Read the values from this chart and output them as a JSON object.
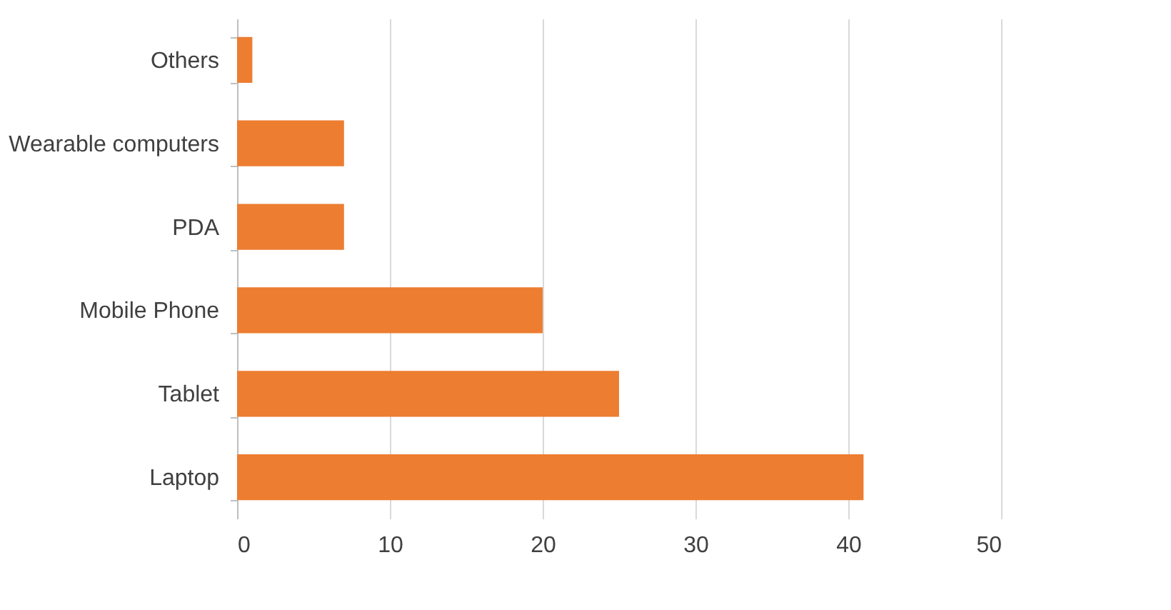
{
  "chart_data": {
    "type": "bar",
    "orientation": "horizontal",
    "categories": [
      "Others",
      "Wearable computers",
      "PDA",
      "Mobile Phone",
      "Tablet",
      "Laptop"
    ],
    "values": [
      1,
      7,
      7,
      20,
      25,
      41
    ],
    "color": "#ed7d31",
    "xlim": [
      0,
      50
    ],
    "xticks": [
      0,
      10,
      20,
      30,
      40,
      50
    ],
    "grid": "x"
  }
}
